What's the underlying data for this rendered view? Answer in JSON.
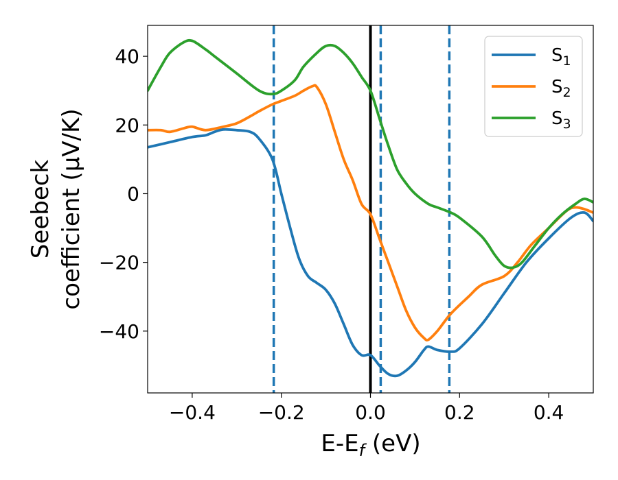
{
  "chart_data": {
    "type": "line",
    "xlabel": "E-E$_f$ (eV)",
    "xlabel_main": "E-E",
    "xlabel_sub": "f",
    "xlabel_tail": " (eV)",
    "ylabel_line1": "Seebeck",
    "ylabel_line2": "coefficient  (μV/K)",
    "xlim": [
      -0.5,
      0.5
    ],
    "ylim": [
      -58,
      49
    ],
    "xticks": [
      -0.4,
      -0.2,
      0.0,
      0.2,
      0.4
    ],
    "xtick_labels": [
      "−0.4",
      "−0.2",
      "0.0",
      "0.2",
      "0.4"
    ],
    "yticks": [
      40,
      20,
      0,
      -20,
      -40
    ],
    "ytick_labels": [
      "40",
      "20",
      "0",
      "−20",
      "−40"
    ],
    "legend_position": "top-right",
    "series": [
      {
        "name": "S1",
        "label_main": "S",
        "label_sub": "1",
        "color": "#1f77b4",
        "x": [
          -0.5,
          -0.45,
          -0.4,
          -0.37,
          -0.35,
          -0.33,
          -0.3,
          -0.27,
          -0.25,
          -0.22,
          -0.2,
          -0.18,
          -0.16,
          -0.14,
          -0.12,
          -0.1,
          -0.08,
          -0.06,
          -0.04,
          -0.02,
          0.0,
          0.02,
          0.04,
          0.06,
          0.08,
          0.1,
          0.12,
          0.13,
          0.15,
          0.18,
          0.2,
          0.25,
          0.3,
          0.35,
          0.4,
          0.45,
          0.48,
          0.5
        ],
        "y": [
          13.5,
          15,
          16.5,
          17,
          18,
          18.7,
          18.5,
          18,
          16,
          10,
          0,
          -10,
          -19,
          -24,
          -26,
          -28,
          -32,
          -38,
          -44,
          -47,
          -47,
          -50,
          -52.5,
          -53,
          -51.5,
          -49,
          -45.5,
          -44.5,
          -45.5,
          -46,
          -45,
          -38,
          -29,
          -20,
          -13,
          -7,
          -5.5,
          -8
        ]
      },
      {
        "name": "S2",
        "label_main": "S",
        "label_sub": "2",
        "color": "#ff7f0e",
        "x": [
          -0.5,
          -0.47,
          -0.45,
          -0.42,
          -0.4,
          -0.37,
          -0.33,
          -0.3,
          -0.27,
          -0.25,
          -0.22,
          -0.2,
          -0.17,
          -0.15,
          -0.13,
          -0.12,
          -0.1,
          -0.08,
          -0.06,
          -0.04,
          -0.02,
          0.0,
          0.02,
          0.04,
          0.06,
          0.08,
          0.1,
          0.12,
          0.13,
          0.15,
          0.18,
          0.22,
          0.25,
          0.3,
          0.33,
          0.36,
          0.4,
          0.44,
          0.46,
          0.48,
          0.5
        ],
        "y": [
          18.5,
          18.5,
          18,
          19,
          19.5,
          18.5,
          19.5,
          20.5,
          22.5,
          24,
          26,
          27,
          28.5,
          30,
          31.3,
          31,
          26,
          18,
          10,
          4,
          -3,
          -6,
          -13,
          -20,
          -27,
          -34,
          -39,
          -42,
          -42.5,
          -40,
          -35,
          -30,
          -26.5,
          -24,
          -20,
          -15,
          -10,
          -5,
          -4,
          -4.5,
          -5.5
        ]
      },
      {
        "name": "S3",
        "label_main": "S",
        "label_sub": "3",
        "color": "#2ca02c",
        "x": [
          -0.5,
          -0.47,
          -0.45,
          -0.42,
          -0.4,
          -0.37,
          -0.35,
          -0.3,
          -0.25,
          -0.22,
          -0.2,
          -0.17,
          -0.15,
          -0.12,
          -0.1,
          -0.08,
          -0.06,
          -0.04,
          -0.02,
          0.0,
          0.02,
          0.04,
          0.06,
          0.08,
          0.1,
          0.13,
          0.15,
          0.18,
          0.2,
          0.25,
          0.28,
          0.3,
          0.32,
          0.34,
          0.37,
          0.4,
          0.43,
          0.46,
          0.48,
          0.5
        ],
        "y": [
          30,
          37,
          41,
          44,
          44.5,
          42,
          40,
          35,
          30,
          29,
          30,
          33,
          37,
          41,
          43,
          43,
          41,
          38,
          34,
          30,
          22,
          14,
          7,
          3,
          0,
          -3,
          -4,
          -5.5,
          -7,
          -12.5,
          -18,
          -21,
          -21.5,
          -20,
          -15,
          -10,
          -6,
          -3,
          -1.5,
          -2.5
        ]
      }
    ],
    "vlines": [
      {
        "x": 0.0,
        "style": "solid",
        "color": "#000000"
      },
      {
        "x": -0.217,
        "style": "dashed",
        "color": "#1f77b4"
      },
      {
        "x": 0.023,
        "style": "dashed",
        "color": "#1f77b4"
      },
      {
        "x": 0.177,
        "style": "dashed",
        "color": "#1f77b4"
      }
    ]
  }
}
